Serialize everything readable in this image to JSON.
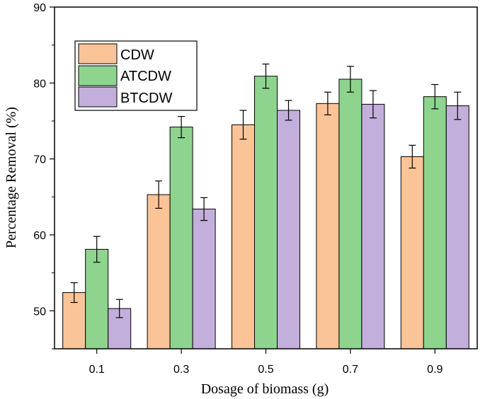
{
  "chart_data": {
    "type": "bar",
    "title": "",
    "xlabel": "Dosage of biomass (g)",
    "ylabel": "Percentage Removal (%)",
    "ylim": [
      45,
      90
    ],
    "yticks": [
      50,
      60,
      70,
      80,
      90
    ],
    "categories": [
      "0.1",
      "0.3",
      "0.5",
      "0.7",
      "0.9"
    ],
    "series": [
      {
        "name": "CDW",
        "color": "#FBC498",
        "values": [
          52.4,
          65.3,
          74.5,
          77.3,
          70.3
        ],
        "errors": [
          1.3,
          1.8,
          1.9,
          1.5,
          1.5
        ]
      },
      {
        "name": "ATCDW",
        "color": "#8ED48F",
        "values": [
          58.1,
          74.2,
          80.9,
          80.5,
          78.2
        ],
        "errors": [
          1.7,
          1.4,
          1.6,
          1.7,
          1.6
        ]
      },
      {
        "name": "BTCDW",
        "color": "#C3AFDB",
        "values": [
          50.3,
          63.4,
          76.4,
          77.2,
          77.0
        ],
        "errors": [
          1.2,
          1.5,
          1.3,
          1.8,
          1.8
        ]
      }
    ],
    "legend_position": "top-left",
    "grid": false
  }
}
